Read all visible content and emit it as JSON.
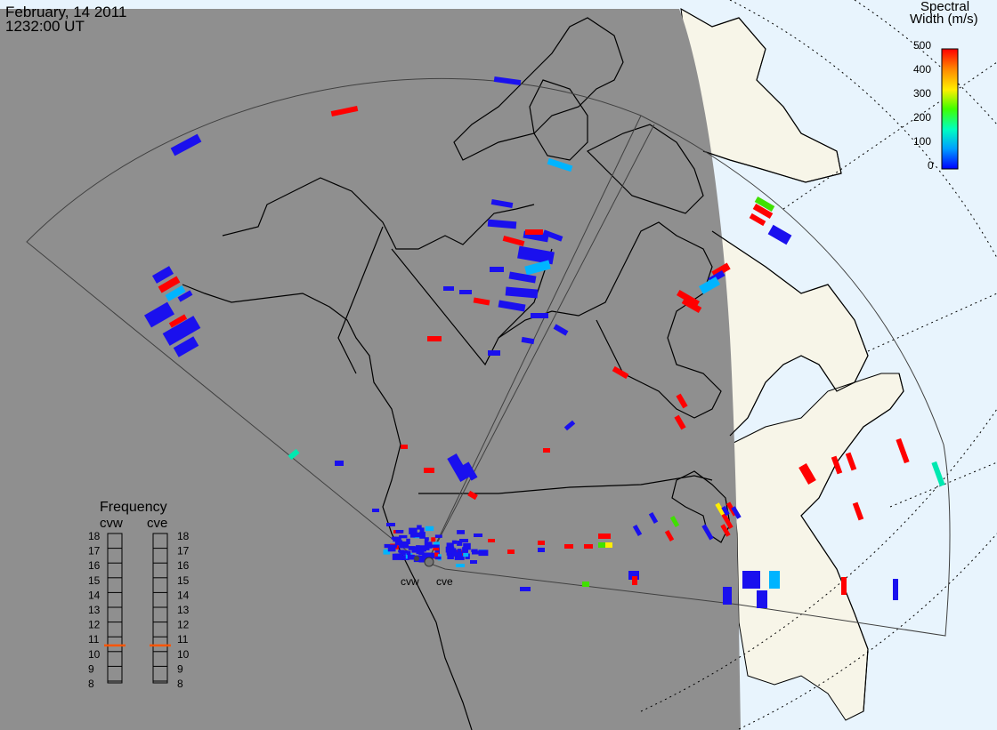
{
  "title": {
    "date": "February, 14 2011",
    "time": "1232:00 UT"
  },
  "legend": {
    "title_line1": "Spectral",
    "title_line2": "Width (m/s)",
    "ticks": [
      "500",
      "400",
      "300",
      "200",
      "100",
      "0"
    ],
    "range": [
      0,
      500
    ]
  },
  "stations": [
    {
      "code": "cvw"
    },
    {
      "code": "cve"
    }
  ],
  "frequency_panel": {
    "title": "Frequency",
    "columns": [
      "cvw",
      "cve"
    ],
    "scale": [
      "18",
      "17",
      "16",
      "15",
      "14",
      "13",
      "12",
      "11",
      "10",
      "9",
      "8"
    ],
    "current_mhz": {
      "cvw": 10.9,
      "cve": 10.9
    }
  },
  "colors": {
    "night_region": "#8f8f8f",
    "day_land": "#f7f5e8",
    "day_ocean": "#e8f4fd",
    "coastline": "#000000",
    "fov_outline": "#404040",
    "grid": "#000000",
    "frequency_marker": "#ff5500"
  },
  "colorscale": [
    "#0000ff",
    "#00a0ff",
    "#00ffc0",
    "#40ff00",
    "#ffee00",
    "#ff8800",
    "#ff0000"
  ]
}
